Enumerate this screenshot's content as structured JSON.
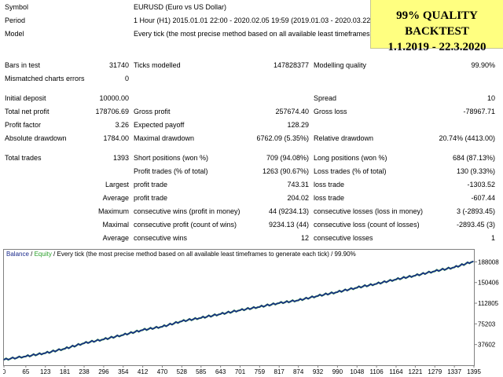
{
  "header": {
    "symbol_label": "Symbol",
    "symbol_value": "EURUSD (Euro vs US Dollar)",
    "period_label": "Period",
    "period_value": "1 Hour (H1) 2015.01.01 22:00 - 2020.02.05 19:59 (2019.01.03 - 2020.03.22)",
    "model_label": "Model",
    "model_value": "Every tick (the most precise method based on all available least timeframes)"
  },
  "banner": {
    "line1": "99% QUALITY BACKTEST",
    "line2": "1.1.2019 - 22.3.2020",
    "background": "#ffff80"
  },
  "stats": {
    "bars_in_test_label": "Bars in test",
    "bars_in_test": "31740",
    "ticks_modelled_label": "Ticks modelled",
    "ticks_modelled": "147828377",
    "modelling_quality_label": "Modelling quality",
    "modelling_quality": "99.90%",
    "mismatched_label": "Mismatched charts errors",
    "mismatched": "0",
    "initial_deposit_label": "Initial deposit",
    "initial_deposit": "10000.00",
    "spread_label": "Spread",
    "spread": "10",
    "total_net_profit_label": "Total net profit",
    "total_net_profit": "178706.69",
    "gross_profit_label": "Gross profit",
    "gross_profit": "257674.40",
    "gross_loss_label": "Gross loss",
    "gross_loss": "-78967.71",
    "profit_factor_label": "Profit factor",
    "profit_factor": "3.26",
    "expected_payoff_label": "Expected payoff",
    "expected_payoff": "128.29",
    "absolute_drawdown_label": "Absolute drawdown",
    "absolute_drawdown": "1784.00",
    "maximal_drawdown_label": "Maximal drawdown",
    "maximal_drawdown": "6762.09 (5.35%)",
    "relative_drawdown_label": "Relative drawdown",
    "relative_drawdown": "20.74% (4413.00)"
  },
  "trades": {
    "total_trades_label": "Total trades",
    "total_trades": "1393",
    "short_label": "Short positions (won %)",
    "short_value": "709 (94.08%)",
    "long_label": "Long positions (won %)",
    "long_value": "684 (87.13%)",
    "profit_trades_label": "Profit trades (% of total)",
    "profit_trades": "1263 (90.67%)",
    "loss_trades_label": "Loss trades (% of total)",
    "loss_trades": "130 (9.33%)",
    "largest_label": "Largest",
    "largest_profit_label": "profit trade",
    "largest_profit": "743.31",
    "largest_loss_label": "loss trade",
    "largest_loss": "-1303.52",
    "average_label": "Average",
    "average_profit_label": "profit trade",
    "average_profit": "204.02",
    "average_loss_label": "loss trade",
    "average_loss": "-607.44",
    "maximum_label": "Maximum",
    "max_cons_wins_label": "consecutive wins (profit in money)",
    "max_cons_wins": "44 (9234.13)",
    "max_cons_losses_label": "consecutive losses (loss in money)",
    "max_cons_losses": "3 (-2893.45)",
    "maximal_label": "Maximal",
    "maximal_cons_profit_label": "consecutive profit (count of wins)",
    "maximal_cons_profit": "9234.13 (44)",
    "maximal_cons_loss_label": "consecutive loss (count of losses)",
    "maximal_cons_loss": "-2893.45 (3)",
    "average2_label": "Average",
    "avg_cons_wins_label": "consecutive wins",
    "avg_cons_wins": "12",
    "avg_cons_losses_label": "consecutive losses",
    "avg_cons_losses": "1"
  },
  "chart_legend": {
    "balance": "Balance",
    "sep1": " / ",
    "equity": "Equity",
    "rest": " / Every tick (the most precise method based on all available least timeframes to generate each tick) / 99.90%"
  },
  "colors": {
    "balance": "#1a2a8c",
    "equity": "#2aa02a",
    "grid": "#c8c8c8"
  },
  "chart_data": {
    "type": "line",
    "x_ticks": [
      "0",
      "65",
      "123",
      "181",
      "238",
      "296",
      "354",
      "412",
      "470",
      "528",
      "585",
      "643",
      "701",
      "759",
      "817",
      "874",
      "932",
      "990",
      "1048",
      "1106",
      "1164",
      "1221",
      "1279",
      "1337",
      "1395"
    ],
    "y_ticks": [
      "188008",
      "150406",
      "112805",
      "75203",
      "37602"
    ],
    "xlim": [
      0,
      1395
    ],
    "ylim": [
      0,
      210000
    ],
    "series": [
      {
        "name": "Balance",
        "x": [
          0,
          65,
          123,
          181,
          238,
          296,
          354,
          412,
          470,
          528,
          585,
          643,
          701,
          759,
          817,
          874,
          932,
          990,
          1048,
          1106,
          1164,
          1221,
          1279,
          1337,
          1393
        ],
        "values": [
          10000,
          16000,
          22000,
          30000,
          40000,
          47000,
          55000,
          64000,
          70000,
          80000,
          86000,
          93000,
          100000,
          106000,
          113000,
          118000,
          126000,
          133000,
          141000,
          148000,
          156000,
          163000,
          171000,
          178000,
          188700
        ]
      }
    ]
  }
}
